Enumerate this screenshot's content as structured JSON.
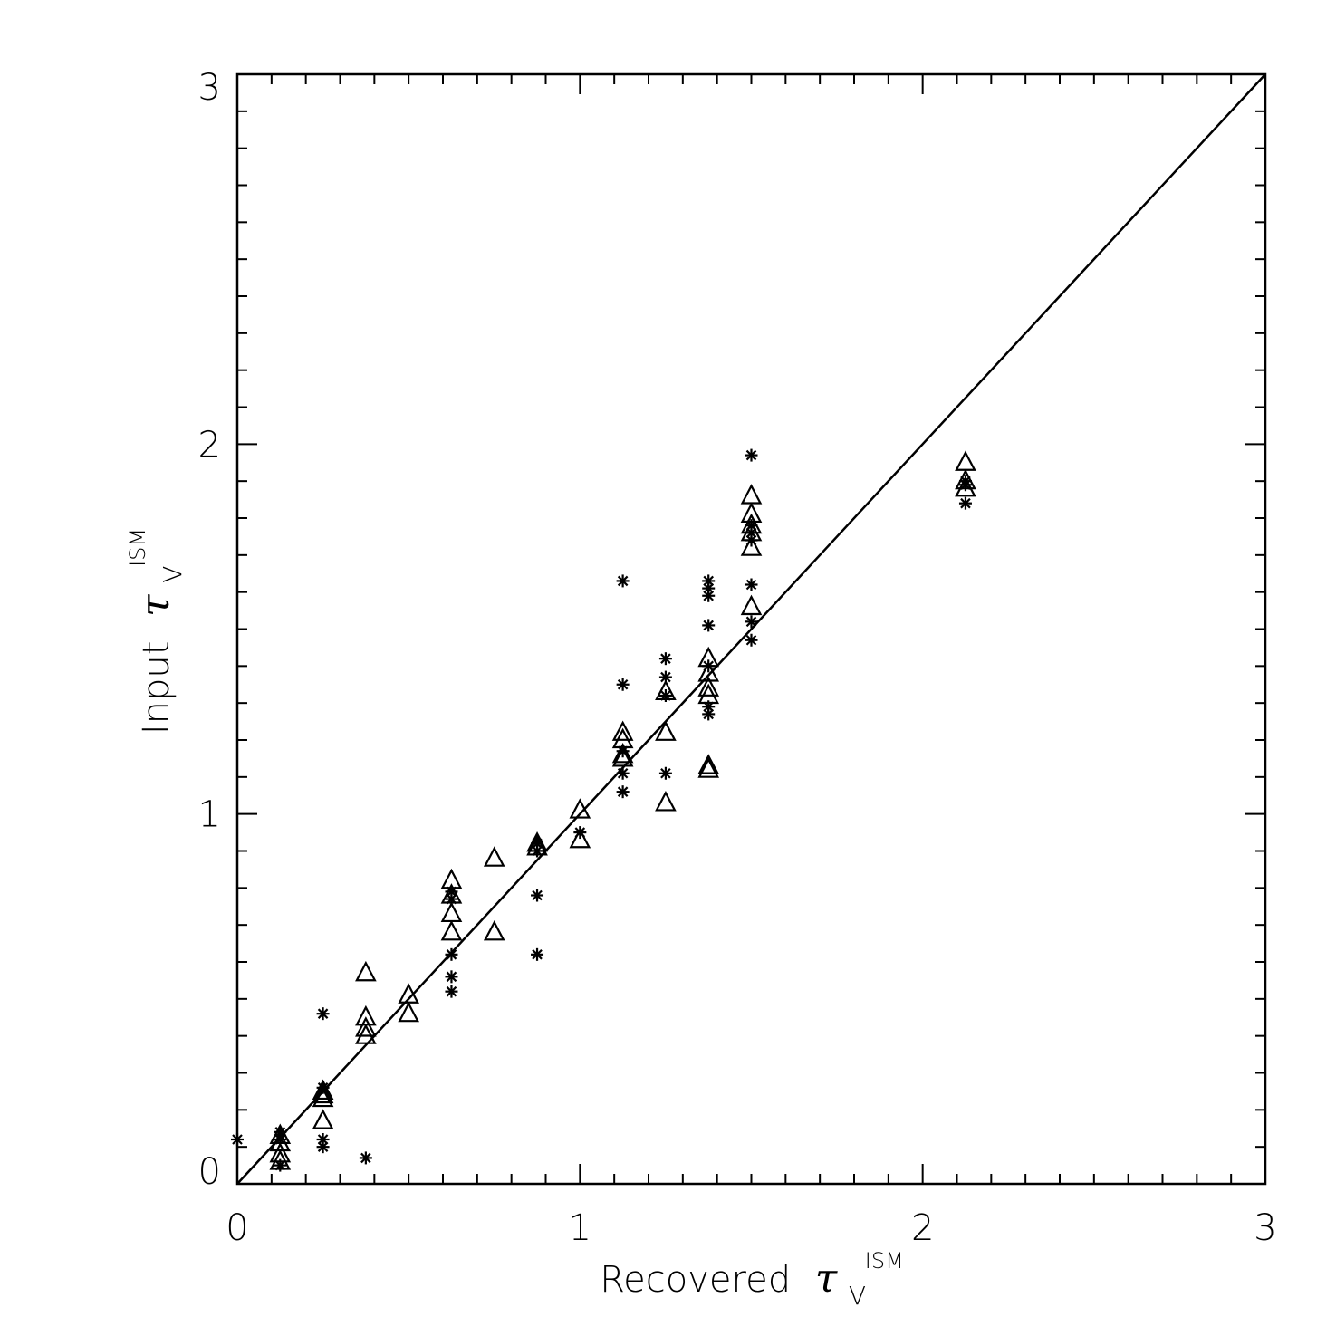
{
  "chart_data": {
    "type": "scatter",
    "xlabel": {
      "prefix": "Recovered",
      "symbol": "τ",
      "subscript": "V",
      "superscript": "ISM"
    },
    "ylabel": {
      "prefix": "Input",
      "symbol": "τ",
      "subscript": "V",
      "superscript": "ISM"
    },
    "xlim": [
      0,
      3
    ],
    "ylim": [
      0,
      3
    ],
    "x_ticks": [
      "0",
      "1",
      "2",
      "3"
    ],
    "y_ticks": [
      "0",
      "1",
      "2",
      "3"
    ],
    "grid": false,
    "reference_line": {
      "name": "",
      "x": [
        0,
        3
      ],
      "y": [
        0,
        3
      ]
    },
    "series": [
      {
        "marker": "triangle",
        "points": [
          [
            0.125,
            0.13
          ],
          [
            0.125,
            0.11
          ],
          [
            0.125,
            0.08
          ],
          [
            0.125,
            0.06
          ],
          [
            0.25,
            0.25
          ],
          [
            0.25,
            0.24
          ],
          [
            0.25,
            0.23
          ],
          [
            0.25,
            0.17
          ],
          [
            0.375,
            0.57
          ],
          [
            0.375,
            0.45
          ],
          [
            0.375,
            0.42
          ],
          [
            0.375,
            0.4
          ],
          [
            0.5,
            0.51
          ],
          [
            0.5,
            0.46
          ],
          [
            0.625,
            0.82
          ],
          [
            0.625,
            0.78
          ],
          [
            0.625,
            0.73
          ],
          [
            0.625,
            0.68
          ],
          [
            0.75,
            0.88
          ],
          [
            0.75,
            0.68
          ],
          [
            0.875,
            0.92
          ],
          [
            0.875,
            0.91
          ],
          [
            1.0,
            1.01
          ],
          [
            1.0,
            0.93
          ],
          [
            1.125,
            1.22
          ],
          [
            1.125,
            1.2
          ],
          [
            1.125,
            1.16
          ],
          [
            1.125,
            1.15
          ],
          [
            1.25,
            1.33
          ],
          [
            1.25,
            1.22
          ],
          [
            1.25,
            1.03
          ],
          [
            1.375,
            1.42
          ],
          [
            1.375,
            1.38
          ],
          [
            1.375,
            1.34
          ],
          [
            1.375,
            1.32
          ],
          [
            1.375,
            1.13
          ],
          [
            1.375,
            1.12
          ],
          [
            1.5,
            1.86
          ],
          [
            1.5,
            1.81
          ],
          [
            1.5,
            1.78
          ],
          [
            1.5,
            1.76
          ],
          [
            1.5,
            1.72
          ],
          [
            1.5,
            1.56
          ],
          [
            2.125,
            1.95
          ],
          [
            2.125,
            1.9
          ],
          [
            2.125,
            1.88
          ]
        ]
      },
      {
        "marker": "asterisk",
        "points": [
          [
            0.0,
            0.12
          ],
          [
            0.125,
            0.14
          ],
          [
            0.125,
            0.12
          ],
          [
            0.125,
            0.05
          ],
          [
            0.25,
            0.46
          ],
          [
            0.25,
            0.26
          ],
          [
            0.25,
            0.12
          ],
          [
            0.25,
            0.1
          ],
          [
            0.375,
            0.07
          ],
          [
            0.625,
            0.79
          ],
          [
            0.625,
            0.77
          ],
          [
            0.625,
            0.62
          ],
          [
            0.625,
            0.56
          ],
          [
            0.625,
            0.52
          ],
          [
            0.875,
            0.92
          ],
          [
            0.875,
            0.9
          ],
          [
            0.875,
            0.78
          ],
          [
            0.875,
            0.62
          ],
          [
            1.0,
            0.95
          ],
          [
            1.125,
            1.63
          ],
          [
            1.125,
            1.35
          ],
          [
            1.125,
            1.17
          ],
          [
            1.125,
            1.11
          ],
          [
            1.125,
            1.06
          ],
          [
            1.25,
            1.42
          ],
          [
            1.25,
            1.37
          ],
          [
            1.25,
            1.32
          ],
          [
            1.25,
            1.11
          ],
          [
            1.375,
            1.63
          ],
          [
            1.375,
            1.61
          ],
          [
            1.375,
            1.59
          ],
          [
            1.375,
            1.51
          ],
          [
            1.375,
            1.4
          ],
          [
            1.375,
            1.29
          ],
          [
            1.375,
            1.27
          ],
          [
            1.5,
            1.97
          ],
          [
            1.5,
            1.78
          ],
          [
            1.5,
            1.76
          ],
          [
            1.5,
            1.74
          ],
          [
            1.5,
            1.62
          ],
          [
            1.5,
            1.52
          ],
          [
            1.5,
            1.47
          ],
          [
            2.125,
            1.9
          ],
          [
            2.125,
            1.89
          ],
          [
            2.125,
            1.84
          ]
        ]
      }
    ]
  }
}
